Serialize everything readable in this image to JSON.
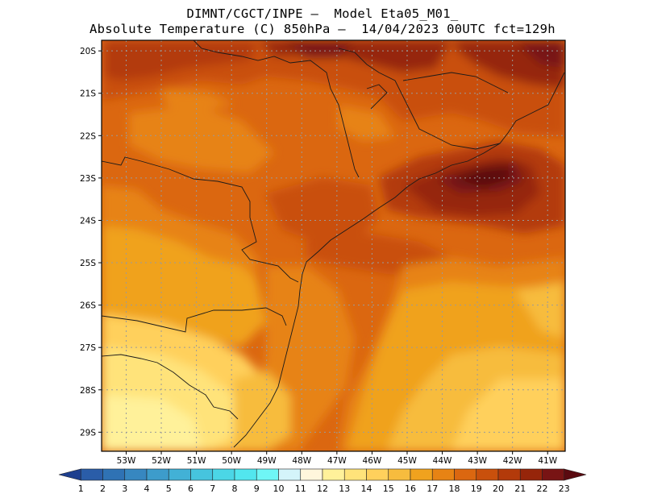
{
  "header": {
    "line1": "DIMNT/CGCT/INPE –  Model Eta05_M01_",
    "line2": "Absolute Temperature (C) 850hPa –  14/04/2023 00UTC fct=129h"
  },
  "map": {
    "lat_labels": [
      "20S",
      "21S",
      "22S",
      "23S",
      "24S",
      "25S",
      "26S",
      "27S",
      "28S",
      "29S"
    ],
    "lon_labels": [
      "53W",
      "52W",
      "51W",
      "50W",
      "49W",
      "48W",
      "47W",
      "46W",
      "45W",
      "44W",
      "43W",
      "42W",
      "41W"
    ],
    "lon_range": [
      -53.7,
      -40.5
    ],
    "lat_range": [
      -29.45,
      -19.75
    ]
  },
  "colorbar": {
    "labels": [
      "1",
      "2",
      "3",
      "4",
      "5",
      "6",
      "7",
      "8",
      "9",
      "10",
      "11",
      "12",
      "13",
      "14",
      "15",
      "16",
      "17",
      "18",
      "19",
      "20",
      "21",
      "22",
      "23"
    ],
    "colors": [
      "#1e3f8f",
      "#2a5da8",
      "#2f72b4",
      "#3787c0",
      "#3d9ccb",
      "#42b1d6",
      "#46c4de",
      "#4bd6e6",
      "#52e6ee",
      "#6ff6f6",
      "#d4f4fa",
      "#fff6dc",
      "#fff19a",
      "#ffe37a",
      "#ffd05c",
      "#f7bc3e",
      "#f0a21e",
      "#e78314",
      "#db6710",
      "#c9500c",
      "#b33a0a",
      "#96250a",
      "#781414",
      "#5a0a10"
    ]
  }
}
